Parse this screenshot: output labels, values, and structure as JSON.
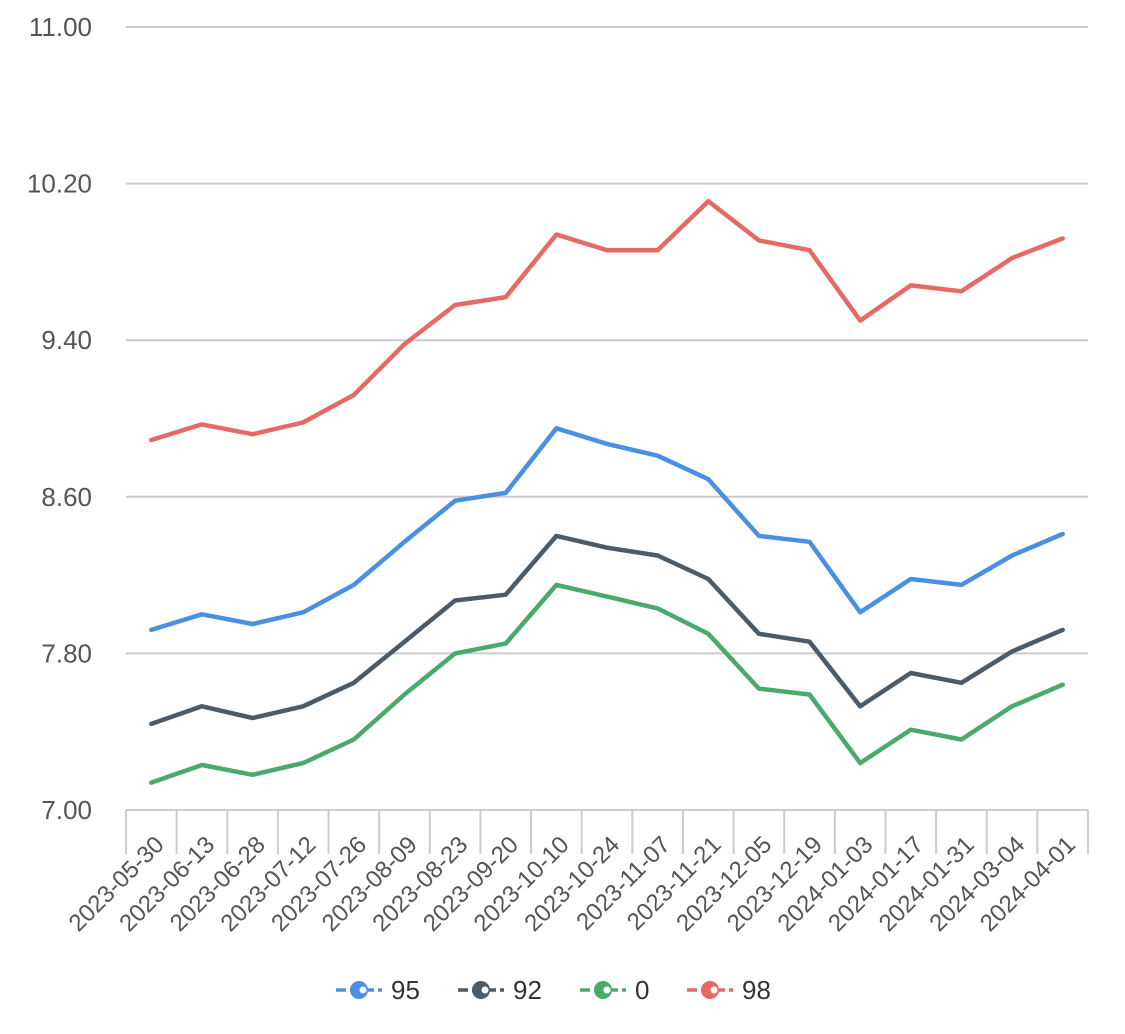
{
  "chart_data": {
    "type": "line",
    "ylim": [
      7.0,
      11.0
    ],
    "yticks": [
      "7.00",
      "7.80",
      "8.60",
      "9.40",
      "10.20",
      "11.00"
    ],
    "grid": true,
    "legend_position": "bottom",
    "categories": [
      "2023-05-30",
      "2023-06-13",
      "2023-06-28",
      "2023-07-12",
      "2023-07-26",
      "2023-08-09",
      "2023-08-23",
      "2023-09-20",
      "2023-10-10",
      "2023-10-24",
      "2023-11-07",
      "2023-11-21",
      "2023-12-05",
      "2023-12-19",
      "2024-01-03",
      "2024-01-17",
      "2024-01-31",
      "2024-03-04",
      "2024-04-01"
    ],
    "series": [
      {
        "name": "95",
        "color": "#4a90e2",
        "values": [
          7.92,
          8.0,
          7.95,
          8.01,
          8.15,
          8.37,
          8.58,
          8.62,
          8.95,
          8.87,
          8.81,
          8.69,
          8.4,
          8.37,
          8.01,
          8.18,
          8.15,
          8.3,
          8.41
        ]
      },
      {
        "name": "92",
        "color": "#4c5b68",
        "values": [
          7.44,
          7.53,
          7.47,
          7.53,
          7.65,
          7.86,
          8.07,
          8.1,
          8.4,
          8.34,
          8.3,
          8.18,
          7.9,
          7.86,
          7.53,
          7.7,
          7.65,
          7.81,
          7.92
        ]
      },
      {
        "name": "0",
        "color": "#4aa96c",
        "values": [
          7.14,
          7.23,
          7.18,
          7.24,
          7.36,
          7.59,
          7.8,
          7.85,
          8.15,
          8.09,
          8.03,
          7.9,
          7.62,
          7.59,
          7.24,
          7.41,
          7.36,
          7.53,
          7.64
        ]
      },
      {
        "name": "98",
        "color": "#e66a63",
        "values": [
          8.89,
          8.97,
          8.92,
          8.98,
          9.12,
          9.38,
          9.58,
          9.62,
          9.94,
          9.86,
          9.86,
          10.11,
          9.91,
          9.86,
          9.5,
          9.68,
          9.65,
          9.82,
          9.92
        ]
      }
    ]
  }
}
